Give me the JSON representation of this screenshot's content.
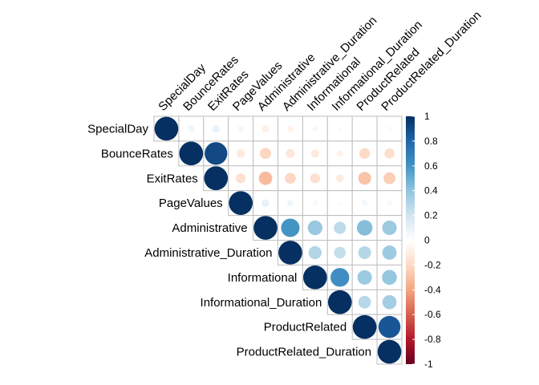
{
  "chart_data": {
    "type": "heatmap",
    "style": "upper-triangular correlation matrix with circle glyphs",
    "variables": [
      "SpecialDay",
      "BounceRates",
      "ExitRates",
      "PageValues",
      "Administrative",
      "Administrative_Duration",
      "Informational",
      "Informational_Duration",
      "ProductRelated",
      "ProductRelated_Duration"
    ],
    "matrix": [
      [
        1.0,
        0.07,
        0.1,
        -0.06,
        -0.09,
        -0.07,
        -0.05,
        -0.03,
        -0.02,
        -0.04
      ],
      [
        null,
        1.0,
        0.91,
        -0.12,
        -0.22,
        -0.14,
        -0.12,
        -0.07,
        -0.2,
        -0.18
      ],
      [
        null,
        null,
        1.0,
        -0.17,
        -0.32,
        -0.21,
        -0.17,
        -0.11,
        -0.29,
        -0.25
      ],
      [
        null,
        null,
        null,
        1.0,
        0.1,
        0.07,
        0.05,
        0.03,
        0.06,
        0.05
      ],
      [
        null,
        null,
        null,
        null,
        1.0,
        0.6,
        0.38,
        0.26,
        0.43,
        0.37
      ],
      [
        null,
        null,
        null,
        null,
        null,
        1.0,
        0.3,
        0.24,
        0.29,
        0.36
      ],
      [
        null,
        null,
        null,
        null,
        null,
        null,
        1.0,
        0.62,
        0.37,
        0.39
      ],
      [
        null,
        null,
        null,
        null,
        null,
        null,
        null,
        1.0,
        0.28,
        0.35
      ],
      [
        null,
        null,
        null,
        null,
        null,
        null,
        null,
        null,
        1.0,
        0.86
      ],
      [
        null,
        null,
        null,
        null,
        null,
        null,
        null,
        null,
        null,
        1.0
      ]
    ],
    "colorbar": {
      "min": -1,
      "max": 1,
      "tick_labels": [
        "1",
        "0.8",
        "0.6",
        "0.4",
        "0.2",
        "0",
        "-0.2",
        "-0.4",
        "-0.6",
        "-0.8",
        "-1"
      ],
      "tick_values": [
        1,
        0.8,
        0.6,
        0.4,
        0.2,
        0,
        -0.2,
        -0.4,
        -0.6,
        -0.8,
        -1
      ],
      "colors_low_to_high": [
        "#67001F",
        "#B2182B",
        "#D6604D",
        "#F4A582",
        "#FDDBC7",
        "#FFFFFF",
        "#D1E5F0",
        "#92C5DE",
        "#4393C3",
        "#2166AC",
        "#053061"
      ]
    },
    "grid": true,
    "legend_position": "right",
    "grid_color": "#BEBEBE"
  }
}
